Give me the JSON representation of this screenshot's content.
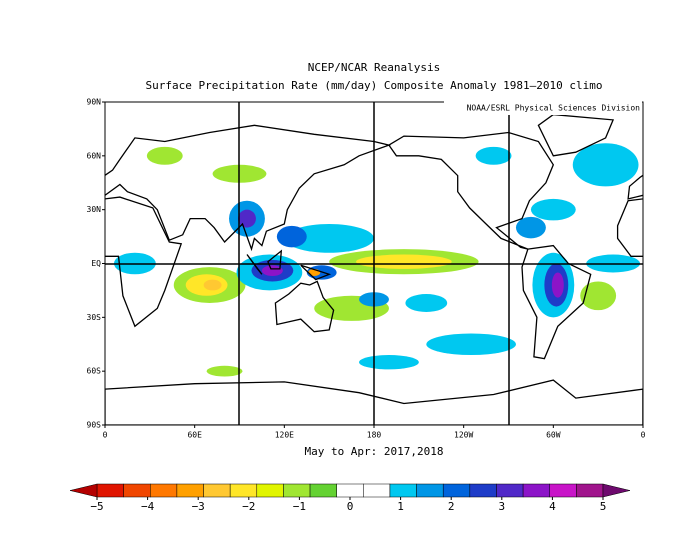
{
  "title": "NCEP/NCAR Reanalysis",
  "subtitle": "Surface Precipitation Rate (mm/day) Composite Anomaly 1981–2010 climo",
  "credit": "NOAA/ESRL Physical Sciences Division",
  "lat_labels": [
    "90N",
    "60N",
    "30N",
    "EQ",
    "30S",
    "60S",
    "90S"
  ],
  "lon_labels": [
    "0",
    "60E",
    "120E",
    "180",
    "120W",
    "60W",
    "0"
  ],
  "period": "May to Apr: 2017,2018",
  "colorbar": {
    "lim": [
      -5,
      5
    ],
    "ticks": [
      {
        "value": -5,
        "label": "−5"
      },
      {
        "value": -4,
        "label": "−4"
      },
      {
        "value": -3,
        "label": "−3"
      },
      {
        "value": -2,
        "label": "−2"
      },
      {
        "value": -1,
        "label": "−1"
      },
      0,
      1,
      2,
      3,
      4,
      5
    ],
    "colors": [
      "#e01400",
      "#f04600",
      "#ff7800",
      "#ffa000",
      "#ffc832",
      "#ffe628",
      "#e1f500",
      "#a0e632",
      "#64d232",
      "#ffffff",
      "#ffffff",
      "#00c8f0",
      "#0096e6",
      "#0064dc",
      "#1e3cc8",
      "#5028c8",
      "#8c14c8",
      "#c814c8",
      "#a0148c"
    ],
    "under_color": "#b40000",
    "over_color": "#6e0a6e"
  }
}
